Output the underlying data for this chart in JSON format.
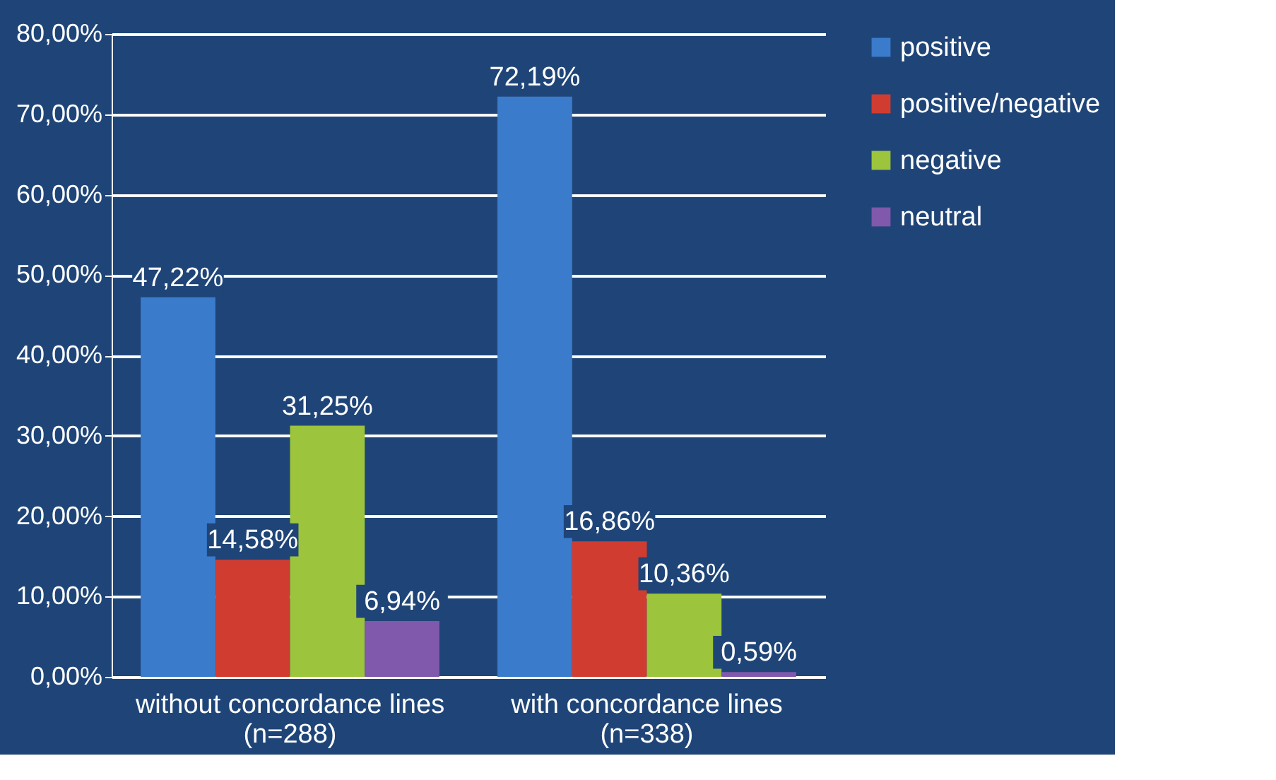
{
  "chart_data": {
    "type": "bar",
    "categories": [
      "without concordance lines (n=288)",
      "with concordance lines (n=338)"
    ],
    "series": [
      {
        "name": "positive",
        "color": "#3b7bcc",
        "values": [
          47.22,
          72.19
        ],
        "value_labels": [
          "47,22%",
          "72,19%"
        ]
      },
      {
        "name": "positive/negative",
        "color": "#d13c30",
        "values": [
          14.58,
          16.86
        ],
        "value_labels": [
          "14,58%",
          "16,86%"
        ]
      },
      {
        "name": "negative",
        "color": "#9cc43c",
        "values": [
          31.25,
          10.36
        ],
        "value_labels": [
          "31,25%",
          "10,36%"
        ]
      },
      {
        "name": "neutral",
        "color": "#8058ac",
        "values": [
          6.94,
          0.59
        ],
        "value_labels": [
          "6,94%",
          "0,59%"
        ]
      }
    ],
    "ylim": [
      0,
      80
    ],
    "yticks": [
      {
        "value": 0,
        "label": "0,00%"
      },
      {
        "value": 10,
        "label": "10,00%"
      },
      {
        "value": 20,
        "label": "20,00%"
      },
      {
        "value": 30,
        "label": "30,00%"
      },
      {
        "value": 40,
        "label": "40,00%"
      },
      {
        "value": 50,
        "label": "50,00%"
      },
      {
        "value": 60,
        "label": "60,00%"
      },
      {
        "value": 70,
        "label": "70,00%"
      },
      {
        "value": 80,
        "label": "80,00%"
      }
    ],
    "grid": "y",
    "legend": "right"
  }
}
